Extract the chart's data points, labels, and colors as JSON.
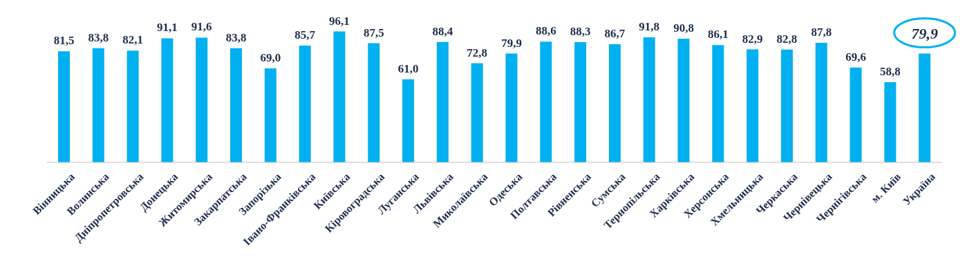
{
  "chart_data": {
    "type": "bar",
    "categories": [
      "Вінницька",
      "Волинська",
      "Дніпропетровська",
      "Донецька",
      "Житомирська",
      "Закарпатська",
      "Запорізька",
      "Івано-Франківська",
      "Київська",
      "Кіровоградська",
      "Луганська",
      "Львівська",
      "Миколаївська",
      "Одеська",
      "Полтавська",
      "Рівненська",
      "Сумська",
      "Тернопільська",
      "Харківська",
      "Херсонська",
      "Хмельницька",
      "Черкаська",
      "Чернівецька",
      "Чернігівська",
      "м. Київ",
      "Україна"
    ],
    "values": [
      81.5,
      83.8,
      82.1,
      91.1,
      91.6,
      83.8,
      69.0,
      85.7,
      96.1,
      87.5,
      61.0,
      88.4,
      72.8,
      79.9,
      88.6,
      88.3,
      86.7,
      91.8,
      90.8,
      86.1,
      82.9,
      82.8,
      87.8,
      69.6,
      58.8,
      79.9
    ],
    "value_labels": [
      "81,5",
      "83,8",
      "82,1",
      "91,1",
      "91,6",
      "83,8",
      "69,0",
      "85,7",
      "96,1",
      "87,5",
      "61,0",
      "88,4",
      "72,8",
      "79,9",
      "88,6",
      "88,3",
      "86,7",
      "91,8",
      "90,8",
      "86,1",
      "82,9",
      "82,8",
      "87,8",
      "69,6",
      "58,8",
      null
    ],
    "annotations": [
      {
        "text": "79,9",
        "x": "Україна",
        "y": 79.9
      }
    ],
    "color": "#00b0f0",
    "relative": false,
    "grid": false,
    "legend": false
  }
}
